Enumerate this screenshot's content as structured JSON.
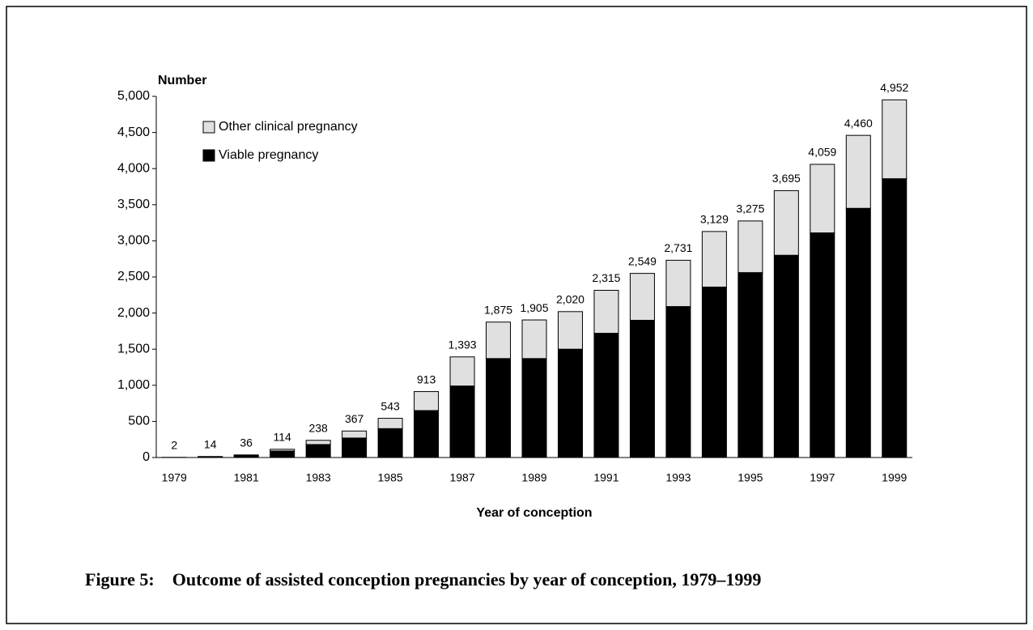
{
  "chart_data": {
    "type": "stacked_bar",
    "title": "Figure 5:    Outcome of assisted conception pregnancies by year of conception, 1979–1999",
    "y_label": "Number",
    "x_label": "Year of conception",
    "categories": [
      "1979",
      null,
      "1981",
      null,
      "1983",
      null,
      "1985",
      null,
      "1987",
      null,
      "1989",
      null,
      "1991",
      null,
      "1993",
      null,
      "1995",
      null,
      "1997",
      null,
      "1999"
    ],
    "series": [
      {
        "name": "Viable pregnancy",
        "color": "#000000",
        "values": [
          1,
          8,
          25,
          90,
          180,
          270,
          400,
          650,
          990,
          1370,
          1370,
          1500,
          1720,
          1900,
          2090,
          2360,
          2560,
          2800,
          3110,
          3450,
          3860
        ]
      },
      {
        "name": "Other clinical pregnancy",
        "color": "#e0e0e0",
        "values": [
          1,
          6,
          11,
          24,
          58,
          97,
          143,
          263,
          403,
          505,
          535,
          520,
          595,
          649,
          641,
          769,
          715,
          895,
          949,
          1010,
          1092
        ]
      }
    ],
    "totals": [
      2,
      14,
      36,
      114,
      238,
      367,
      543,
      913,
      1393,
      1875,
      1905,
      2020,
      2315,
      2549,
      2731,
      3129,
      3275,
      3695,
      4059,
      4460,
      4952
    ],
    "total_labels": [
      "2",
      "14",
      "36",
      "114",
      "238",
      "367",
      "543",
      "913",
      "1,393",
      "1,875",
      "1,905",
      "2,020",
      "2,315",
      "2,549",
      "2,731",
      "3,129",
      "3,275",
      "3,695",
      "4,059",
      "4,460",
      "4,952"
    ],
    "ylim": [
      0,
      5000
    ],
    "yticks": [
      0,
      500,
      {
        "value": 1000,
        "label": "1,000"
      },
      {
        "value": 1500,
        "label": "1,500"
      },
      {
        "value": 2000,
        "label": "2,000"
      },
      {
        "value": 2500,
        "label": "2,500"
      },
      {
        "value": 3000,
        "label": "3,000"
      },
      {
        "value": 3500,
        "label": "3,500"
      },
      {
        "value": 4000,
        "label": "4,000"
      },
      {
        "value": 4500,
        "label": "4,500"
      },
      {
        "value": 5000,
        "label": "5,000"
      }
    ],
    "grid": false,
    "legend": "upper left"
  }
}
